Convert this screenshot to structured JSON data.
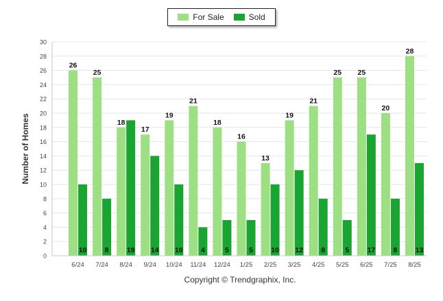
{
  "chart_data": {
    "type": "bar",
    "categories": [
      "6/24",
      "7/24",
      "8/24",
      "9/24",
      "10/24",
      "11/24",
      "12/24",
      "1/25",
      "2/25",
      "3/25",
      "4/25",
      "5/25",
      "6/25",
      "7/25",
      "8/25"
    ],
    "series": [
      {
        "name": "For Sale",
        "color": "#9de084",
        "values": [
          26,
          25,
          18,
          17,
          19,
          21,
          18,
          16,
          13,
          19,
          21,
          25,
          25,
          20,
          28
        ]
      },
      {
        "name": "Sold",
        "color": "#1aa532",
        "values": [
          10,
          8,
          19,
          14,
          10,
          4,
          5,
          5,
          10,
          12,
          8,
          5,
          17,
          8,
          13
        ]
      }
    ],
    "xlabel": "",
    "ylabel": "Number of Homes",
    "ylim": [
      0,
      30
    ],
    "yticks": [
      0,
      2,
      4,
      6,
      8,
      10,
      12,
      14,
      16,
      18,
      20,
      22,
      24,
      26,
      28,
      30
    ],
    "grid": true,
    "legend": "top-center"
  },
  "footer": {
    "copyright": "Copyright © Trendgraphix, Inc."
  }
}
